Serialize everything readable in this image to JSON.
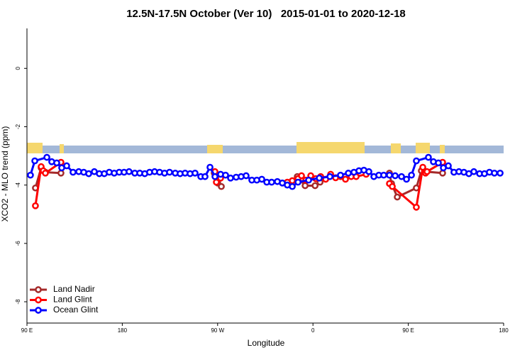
{
  "chart_data": {
    "type": "line",
    "title": "12.5N-17.5N October (Ver 10)   2015-01-01 to 2020-12-18",
    "x_label": "Longitude",
    "y_label": "XCO2 - MLO trend (ppm)",
    "xlim": [
      90,
      540
    ],
    "xticks": [
      {
        "value": 90,
        "label": "90 E"
      },
      180,
      {
        "value": 270,
        "label": "90 W"
      },
      {
        "value": 360,
        "label": "0"
      },
      {
        "value": 450,
        "label": "90 E"
      },
      {
        "value": 540,
        "label": "180"
      }
    ],
    "ylim": [
      -8.73,
      1.37
    ],
    "yticks": [
      0,
      -2,
      -4,
      -6,
      -8
    ],
    "legend": "bottom-left",
    "series": [
      {
        "name": "Land Nadir",
        "color": "#a52a2a",
        "x": [
          98,
          103.4,
          107.4,
          122.1,
          200,
          266.8,
          270.1,
          273.5,
          300,
          345.2,
          352.6,
          362,
          366.7,
          420,
          432.2,
          434.2,
          439.6,
          457.6,
          462.3,
          466.3,
          482.4
        ],
        "values": [
          -4.1,
          -3.41,
          -3.56,
          -3.59,
          null,
          -3.59,
          -3.93,
          -4.05,
          null,
          -3.71,
          -4.02,
          -4.02,
          -3.9,
          null,
          -3.59,
          -3.95,
          -4.41,
          -4.1,
          -3.51,
          -3.54,
          -3.59
        ]
      },
      {
        "name": "Land Glint",
        "color": "#ff0000",
        "x": [
          98,
          103.4,
          105.4,
          107.4,
          122.1,
          200,
          267.5,
          268.8,
          272.8,
          300,
          335.8,
          340.5,
          345.9,
          349.2,
          353.2,
          357.9,
          362.6,
          367.3,
          372,
          376.7,
          381.4,
          386,
          390.7,
          396.1,
          400.8,
          410.2,
          420,
          432.2,
          434.9,
          457.6,
          463.7,
          466.3,
          467.7,
          482.4
        ],
        "values": [
          -4.71,
          -3.37,
          -3.51,
          -3.59,
          -3.22,
          null,
          -3.54,
          -3.9,
          -3.76,
          null,
          -3.9,
          -3.85,
          -3.78,
          -3.68,
          -3.83,
          -3.68,
          -3.78,
          -3.71,
          -3.8,
          -3.63,
          -3.75,
          -3.71,
          -3.8,
          -3.71,
          -3.71,
          -3.63,
          null,
          -3.95,
          -4.05,
          -4.76,
          -3.39,
          -3.59,
          -3.54,
          -3.22
        ]
      },
      {
        "name": "Ocean Glint",
        "color": "#0000ff",
        "x": [
          93.3,
          97.4,
          108.8,
          113.4,
          118.1,
          122.8,
          127.5,
          133.5,
          138.9,
          143.6,
          148.3,
          153.6,
          158.3,
          163,
          167.7,
          172.4,
          177.1,
          181.7,
          186.4,
          191.8,
          196.5,
          201.2,
          205.8,
          210.5,
          215.2,
          219.9,
          224.6,
          230,
          234.6,
          239.3,
          244,
          248.7,
          254.1,
          258.1,
          262.8,
          267.5,
          272.8,
          277.5,
          282.2,
          287.5,
          292.2,
          296.9,
          302.3,
          307,
          311.7,
          316.4,
          321,
          326.4,
          331.1,
          335.8,
          340.5,
          345.9,
          355.9,
          366,
          376,
          386,
          393.4,
          398.7,
          403.4,
          408.1,
          412.8,
          417.5,
          422.2,
          426.8,
          432.2,
          437.6,
          443.6,
          448.3,
          453,
          457.6,
          469,
          473.7,
          478.4,
          483.1,
          487.8,
          493.1,
          497.8,
          502.5,
          507.2,
          511.9,
          517.3,
          521.9,
          526.6,
          531.3,
          536.7
        ],
        "values": [
          -3.66,
          -3.17,
          -3.05,
          -3.2,
          -3.24,
          -3.41,
          -3.34,
          -3.56,
          -3.54,
          -3.56,
          -3.61,
          -3.54,
          -3.61,
          -3.61,
          -3.56,
          -3.59,
          -3.56,
          -3.56,
          -3.54,
          -3.59,
          -3.59,
          -3.61,
          -3.56,
          -3.54,
          -3.56,
          -3.59,
          -3.56,
          -3.59,
          -3.61,
          -3.59,
          -3.61,
          -3.59,
          -3.71,
          -3.71,
          -3.39,
          -3.71,
          -3.63,
          -3.66,
          -3.76,
          -3.73,
          -3.71,
          -3.68,
          -3.83,
          -3.83,
          -3.8,
          -3.9,
          -3.9,
          -3.88,
          -3.93,
          -4.0,
          -4.05,
          -3.9,
          -3.83,
          -3.76,
          -3.71,
          -3.66,
          -3.59,
          -3.56,
          -3.51,
          -3.49,
          -3.54,
          -3.71,
          -3.66,
          -3.66,
          -3.66,
          -3.68,
          -3.71,
          -3.8,
          -3.66,
          -3.17,
          -3.05,
          -3.2,
          -3.24,
          -3.41,
          -3.34,
          -3.56,
          -3.54,
          -3.56,
          -3.61,
          -3.54,
          -3.61,
          -3.61,
          -3.56,
          -3.59,
          -3.59
        ]
      }
    ]
  }
}
